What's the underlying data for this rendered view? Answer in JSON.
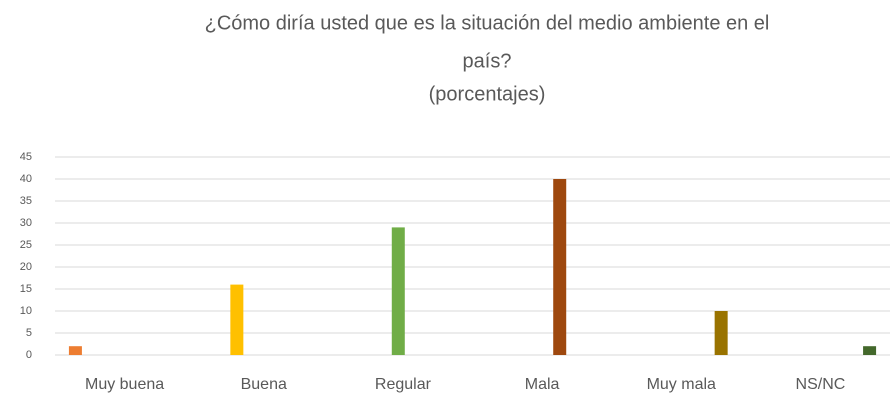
{
  "chart_data": {
    "type": "bar",
    "title": [
      "¿Cómo diría usted que es la situación del medio ambiente en el",
      "país?"
    ],
    "subtitle": "(porcentajes)",
    "categories": [
      "Muy buena",
      "Buena",
      "Regular",
      "Mala",
      "Muy mala",
      "NS/NC"
    ],
    "values": [
      2,
      16,
      29,
      40,
      10,
      2
    ],
    "colors": [
      "#ed7d31",
      "#ffc000",
      "#70ad47",
      "#9e480e",
      "#997300",
      "#43682b"
    ],
    "ylim": [
      0,
      45
    ],
    "yticks": [
      0,
      5,
      10,
      15,
      20,
      25,
      30,
      35,
      40,
      45
    ],
    "grid": true
  }
}
